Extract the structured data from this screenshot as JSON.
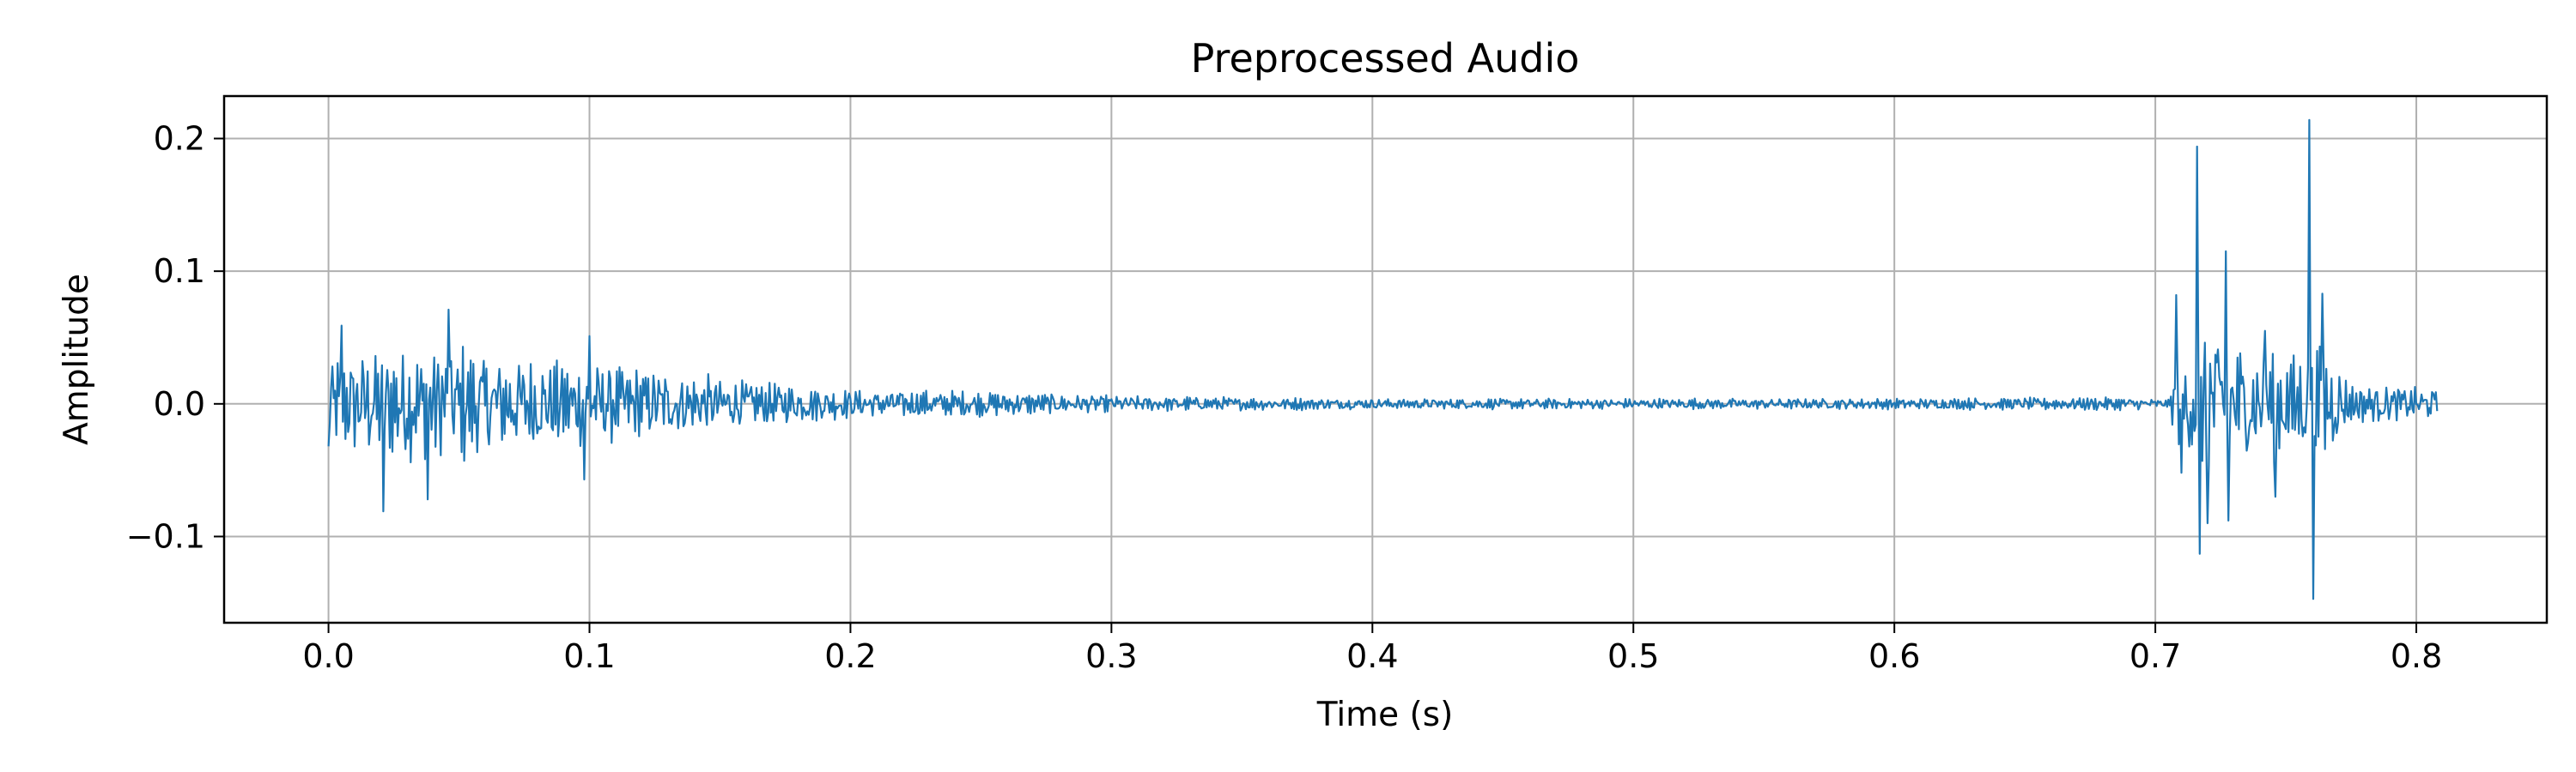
{
  "chart_data": {
    "type": "line",
    "title": "Preprocessed Audio",
    "xlabel": "Time (s)",
    "ylabel": "Amplitude",
    "xlim": [
      -0.04,
      0.85
    ],
    "ylim": [
      -0.165,
      0.232
    ],
    "grid": true,
    "x_ticks": [
      0.0,
      0.1,
      0.2,
      0.3,
      0.4,
      0.5,
      0.6,
      0.7,
      0.8
    ],
    "x_tick_labels": [
      "0.0",
      "0.1",
      "0.2",
      "0.3",
      "0.4",
      "0.5",
      "0.6",
      "0.7",
      "0.8"
    ],
    "y_ticks": [
      -0.1,
      0.0,
      0.1,
      0.2
    ],
    "y_tick_labels": [
      "−0.1",
      "0.0",
      "0.1",
      "0.2"
    ],
    "series": [
      {
        "name": "Preprocessed Audio",
        "color": "#1f77b4",
        "duration_s": 0.808,
        "samples_per_s": 2000,
        "envelope": {
          "t": [
            0.0,
            0.02,
            0.05,
            0.08,
            0.1,
            0.13,
            0.16,
            0.2,
            0.26,
            0.3,
            0.4,
            0.5,
            0.6,
            0.69,
            0.705,
            0.708,
            0.72,
            0.74,
            0.757,
            0.765,
            0.775,
            0.808
          ],
          "a": [
            0.035,
            0.045,
            0.045,
            0.035,
            0.032,
            0.025,
            0.018,
            0.011,
            0.009,
            0.006,
            0.004,
            0.004,
            0.004,
            0.005,
            0.003,
            0.03,
            0.06,
            0.04,
            0.04,
            0.045,
            0.015,
            0.012
          ]
        },
        "peaks": [
          {
            "t": 0.0,
            "y": -0.032
          },
          {
            "t": 0.005,
            "y": 0.059
          },
          {
            "t": 0.021,
            "y": -0.081
          },
          {
            "t": 0.038,
            "y": -0.072
          },
          {
            "t": 0.046,
            "y": 0.071
          },
          {
            "t": 0.1,
            "y": 0.051
          },
          {
            "t": 0.098,
            "y": -0.057
          },
          {
            "t": 0.708,
            "y": 0.082
          },
          {
            "t": 0.71,
            "y": -0.052
          },
          {
            "t": 0.716,
            "y": 0.194
          },
          {
            "t": 0.717,
            "y": -0.113
          },
          {
            "t": 0.72,
            "y": -0.09
          },
          {
            "t": 0.727,
            "y": 0.115
          },
          {
            "t": 0.728,
            "y": -0.088
          },
          {
            "t": 0.742,
            "y": 0.055
          },
          {
            "t": 0.746,
            "y": -0.07
          },
          {
            "t": 0.759,
            "y": 0.214
          },
          {
            "t": 0.7605,
            "y": -0.147
          },
          {
            "t": 0.764,
            "y": 0.083
          }
        ]
      }
    ]
  }
}
